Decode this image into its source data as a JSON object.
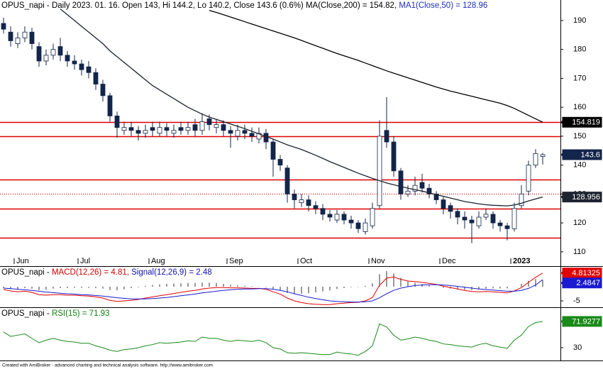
{
  "chart_data": [
    {
      "type": "candlestick",
      "title": "OPUS_napi - Daily 2023. 01. 16. Open 143, Hi 144.2, Lo 140.2, Close 143.6 (0.6%) ",
      "categories": [
        null,
        null,
        "Jun",
        null,
        null,
        null,
        null,
        null,
        null,
        null,
        null,
        "Jul",
        null,
        null,
        null,
        null,
        null,
        null,
        null,
        null,
        null,
        "Aug",
        null,
        null,
        null,
        null,
        null,
        null,
        null,
        null,
        null,
        null,
        "Sep",
        null,
        null,
        null,
        null,
        null,
        null,
        null,
        null,
        null,
        "Oct",
        null,
        null,
        null,
        null,
        null,
        null,
        null,
        null,
        null,
        "Nov",
        null,
        null,
        null,
        null,
        null,
        null,
        null,
        null,
        null,
        "Dec",
        null,
        null,
        null,
        null,
        null,
        null,
        null,
        null,
        null,
        "2023",
        null,
        null,
        null,
        null
      ],
      "open": [
        189,
        186,
        182,
        184,
        186,
        181,
        176,
        178,
        181,
        178,
        176,
        175,
        174,
        172,
        168,
        164,
        157,
        152,
        153,
        152,
        151,
        153,
        151,
        153,
        151,
        153,
        152,
        154,
        152,
        156,
        153,
        154,
        152,
        150,
        152,
        151,
        149,
        151,
        148,
        142,
        139,
        130,
        127,
        128,
        126,
        125,
        123,
        121,
        123,
        121,
        120,
        117,
        119,
        126,
        152,
        148,
        138,
        130,
        131,
        134,
        132,
        130,
        128,
        126,
        124,
        122,
        121,
        119,
        122,
        123,
        120,
        119,
        118,
        126,
        131,
        140,
        143
      ],
      "high": [
        191,
        188,
        186,
        188,
        187.5,
        182.5,
        180,
        182,
        184,
        179.5,
        178,
        176.5,
        176,
        173.5,
        169.5,
        165,
        158.5,
        155,
        155,
        153.5,
        154,
        155,
        155,
        154.5,
        154,
        155,
        155,
        156,
        158,
        157.5,
        156,
        155.5,
        153.5,
        154,
        154,
        153,
        153,
        152.5,
        149,
        143.5,
        140,
        131.5,
        130,
        129.5,
        127.5,
        126.5,
        124.5,
        124.5,
        124,
        122.5,
        121,
        121.5,
        127,
        155.5,
        163.5,
        150,
        139,
        133,
        136,
        137,
        133.5,
        131,
        129,
        127,
        125,
        124,
        122.5,
        124,
        125,
        124,
        121,
        120,
        127,
        133,
        141.5,
        145.5,
        144.2
      ],
      "low": [
        185.5,
        181,
        180.5,
        182.5,
        180,
        174,
        174.5,
        176.5,
        176,
        174,
        173,
        171,
        170,
        166,
        162,
        155,
        149.5,
        150.5,
        150,
        148.5,
        149.5,
        150,
        150,
        150,
        149.5,
        150.5,
        150.5,
        150,
        150.5,
        152,
        151,
        150,
        146,
        148.5,
        149,
        148,
        147.5,
        145.5,
        136,
        138,
        127,
        125,
        125.5,
        124,
        123,
        121,
        120.5,
        120,
        119.5,
        118,
        116.5,
        116,
        118,
        125,
        146,
        136,
        128,
        129,
        129.5,
        130.5,
        128.5,
        126.5,
        123,
        121.5,
        119.5,
        118,
        113,
        118,
        121,
        118,
        117,
        114,
        117,
        125,
        129.5,
        139,
        140.2
      ],
      "close": [
        187,
        183,
        184,
        186,
        182,
        176,
        178,
        180,
        178,
        176,
        175,
        173,
        172,
        168,
        164,
        157,
        153,
        153,
        152,
        151,
        152,
        152,
        153,
        152,
        152,
        152,
        153,
        152,
        155,
        154,
        154,
        152,
        151,
        152,
        151,
        150,
        151,
        148,
        142,
        140,
        130,
        128,
        128,
        126,
        125,
        123,
        122,
        123,
        121,
        120,
        118,
        120,
        125,
        150,
        148,
        138,
        130,
        131,
        133,
        132,
        130,
        128,
        125,
        124,
        122,
        121,
        120,
        122,
        123,
        120,
        119,
        118,
        125,
        130,
        140,
        144,
        143.6
      ],
      "up_color": "#ffffff",
      "down_color": "#13254a",
      "wick_color": "#13254a",
      "series": [
        {
          "caption": "MA(Close,200) = 154.82, ",
          "caption_color": "#000000",
          "color": "#000000",
          "values": [
            null,
            null,
            null,
            null,
            null,
            null,
            null,
            null,
            null,
            null,
            null,
            null,
            null,
            null,
            null,
            null,
            null,
            null,
            null,
            null,
            null,
            null,
            null,
            null,
            null,
            null,
            null,
            null,
            null,
            193.5,
            192.8,
            192,
            191.2,
            190.4,
            189.6,
            188.8,
            188,
            187.2,
            186.4,
            185.6,
            184.8,
            184,
            183.1,
            182.2,
            181.3,
            180.4,
            179.5,
            178.6,
            177.8,
            177,
            176.2,
            175.3,
            174.4,
            173.5,
            172.6,
            171.8,
            171,
            170.2,
            169.4,
            168.6,
            167.8,
            167,
            166.3,
            165.6,
            165,
            164.4,
            163.8,
            163.2,
            162.6,
            162,
            161.4,
            160.6,
            159.6,
            158.4,
            157.2,
            156,
            154.819
          ]
        },
        {
          "caption": "MA1(Close,50) = 128.96",
          "caption_color": "#1f2fb8",
          "color": "#1c2430",
          "values": [
            null,
            null,
            null,
            null,
            null,
            null,
            null,
            null,
            194,
            192,
            190,
            188,
            186,
            184,
            182,
            179.5,
            177.5,
            175.5,
            173.5,
            171.5,
            169.5,
            167.5,
            166,
            164.5,
            163,
            161.5,
            160,
            158.8,
            157.6,
            156.6,
            155.8,
            155,
            154.2,
            153.4,
            152.6,
            151.7,
            150.8,
            149.9,
            149,
            148,
            147,
            146.2,
            145.4,
            144.4,
            143.4,
            142.3,
            141.2,
            140.2,
            139.2,
            138.2,
            137.2,
            136.3,
            135.4,
            134.6,
            133.8,
            133.2,
            132.6,
            132,
            131.5,
            131,
            130.4,
            129.8,
            129.2,
            128.6,
            128,
            127.4,
            127,
            126.6,
            126.3,
            126.1,
            126,
            125.9,
            126.2,
            126.8,
            127.6,
            128.3,
            128.956
          ]
        }
      ],
      "hlines": [
        155,
        150,
        135,
        125,
        115
      ],
      "dotted_hlines": [
        130
      ],
      "hline_color": "#e00000",
      "ylim": [
        105.8,
        197.1
      ],
      "yticks": [
        110,
        120,
        130,
        140,
        150,
        160,
        170,
        180,
        190
      ]
    },
    {
      "type": "line",
      "title": "OPUS_napi - ",
      "series": [
        {
          "caption": "MACD(12,26) = 4.81, ",
          "caption_color": "#d00000",
          "color": "#e00000",
          "values": [
            -1,
            -1.5,
            -1.8,
            -1.6,
            -2,
            -2.8,
            -3,
            -2.8,
            -2.8,
            -3,
            -3,
            -3.2,
            -3.3,
            -3.6,
            -4,
            -4.8,
            -5.2,
            -5,
            -4.8,
            -4.5,
            -4,
            -3.6,
            -3.2,
            -2.8,
            -2.4,
            -2,
            -1.6,
            -1.3,
            -0.8,
            -0.5,
            -0.3,
            -0.3,
            -0.4,
            -0.4,
            -0.5,
            -0.6,
            -0.6,
            -0.9,
            -1.8,
            -2.6,
            -4,
            -5,
            -5.6,
            -6,
            -6.2,
            -6.3,
            -6.3,
            -6,
            -5.8,
            -5.6,
            -5.5,
            -5,
            -3.8,
            0.5,
            3,
            3.4,
            2.6,
            2,
            1.8,
            1.5,
            1.2,
            0.8,
            0.2,
            -0.3,
            -0.8,
            -1.3,
            -1.7,
            -1.8,
            -1.7,
            -1.8,
            -2,
            -2.2,
            -1.5,
            -0.3,
            1.5,
            3.3,
            4.81325
          ]
        },
        {
          "caption": "Signal(12,26,9) = 2.48",
          "caption_color": "#1010b0",
          "color": "#1a1ad0",
          "values": [
            -0.5,
            -0.7,
            -0.9,
            -1.1,
            -1.3,
            -1.6,
            -1.9,
            -2.1,
            -2.3,
            -2.5,
            -2.6,
            -2.8,
            -2.9,
            -3.1,
            -3.3,
            -3.6,
            -3.9,
            -4.1,
            -4.3,
            -4.3,
            -4.3,
            -4.2,
            -4,
            -3.8,
            -3.5,
            -3.2,
            -2.9,
            -2.6,
            -2.2,
            -1.9,
            -1.6,
            -1.3,
            -1.1,
            -0.9,
            -0.8,
            -0.8,
            -0.7,
            -0.7,
            -0.9,
            -1.3,
            -1.8,
            -2.5,
            -3.1,
            -3.7,
            -4.2,
            -4.6,
            -5,
            -5.2,
            -5.3,
            -5.4,
            -5.4,
            -5.3,
            -5,
            -3.9,
            -2.5,
            -1.3,
            -0.5,
            0,
            0.4,
            0.6,
            0.7,
            0.7,
            0.6,
            0.4,
            0.1,
            -0.2,
            -0.5,
            -0.8,
            -1,
            -1.2,
            -1.4,
            -1.6,
            -1.6,
            -1.3,
            -0.6,
            0.6,
            2.4847
          ]
        }
      ],
      "histogram": {
        "color": "#333333",
        "values": [
          -0.5,
          -0.8,
          -0.9,
          -0.5,
          -0.7,
          -1.2,
          -1.1,
          -0.7,
          -0.5,
          -0.5,
          -0.4,
          -0.4,
          -0.4,
          -0.5,
          -0.7,
          -1.2,
          -1.3,
          -0.9,
          -0.5,
          -0.2,
          0.3,
          0.6,
          0.8,
          1,
          1.1,
          1.2,
          1.3,
          1.3,
          1.4,
          1.4,
          1.3,
          1,
          0.7,
          0.5,
          0.3,
          0.2,
          0.1,
          -0.2,
          -0.9,
          -1.3,
          -2.2,
          -2.5,
          -2.5,
          -2.3,
          -2,
          -1.7,
          -1.3,
          -0.8,
          -0.5,
          -0.2,
          -0.1,
          0.3,
          1.2,
          4.4,
          5.5,
          4.7,
          3.1,
          2,
          1.4,
          0.9,
          0.5,
          0.1,
          -0.4,
          -0.7,
          -0.9,
          -1.1,
          -1.2,
          -1,
          -0.7,
          -0.6,
          -0.6,
          -0.6,
          0.1,
          1,
          2.1,
          2.7,
          2.3
        ]
      },
      "ylim": [
        -7,
        7
      ],
      "yticks": [
        -5
      ]
    },
    {
      "type": "line",
      "title": "OPUS_napi - ",
      "series": [
        {
          "caption": "RSI(15) = 71.93",
          "caption_color": "#108010",
          "color": "#1a8a1a",
          "values": [
            55,
            48,
            50,
            52,
            45,
            38,
            42,
            45,
            42,
            40,
            39,
            37,
            37,
            33,
            30,
            26,
            24,
            27,
            28,
            30,
            33,
            35,
            38,
            37,
            38,
            39,
            41,
            40,
            47,
            45,
            45,
            42,
            40,
            42,
            41,
            40,
            42,
            38,
            30,
            28,
            22,
            21,
            22,
            21,
            20,
            19,
            19,
            23,
            21,
            20,
            18,
            24,
            33,
            68,
            63,
            50,
            42,
            44,
            47,
            45,
            42,
            40,
            36,
            35,
            33,
            32,
            31,
            35,
            37,
            33,
            31,
            29,
            42,
            50,
            64,
            70,
            71.9277
          ]
        }
      ],
      "ylim": [
        9.6,
        93.4
      ],
      "yticks": [
        30
      ]
    }
  ],
  "footer": "Created with AmiBroker - advanced charting and technical analysis software. http://www.amibroker.com"
}
